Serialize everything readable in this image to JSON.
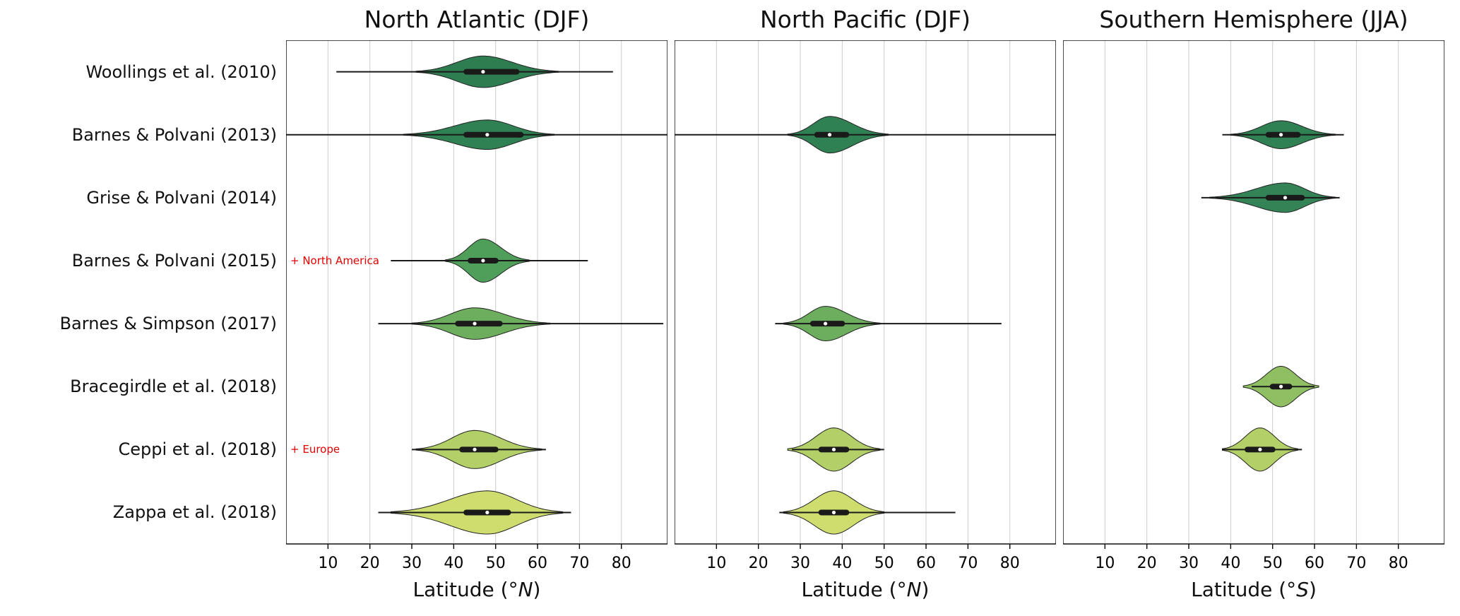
{
  "chart_data": {
    "type": "violin",
    "orientation": "horizontal",
    "studies": [
      "Woollings et al. (2010)",
      "Barnes & Polvani (2013)",
      "Grise & Polvani (2014)",
      "Barnes & Polvani (2015)",
      "Barnes & Simpson (2017)",
      "Bracegirdle et al. (2018)",
      "Ceppi et al. (2018)",
      "Zappa et al. (2018)"
    ],
    "row_colors": [
      "#2e7d51",
      "#2f8052",
      "#338356",
      "#4f9f5b",
      "#6cae5d",
      "#8fbf62",
      "#b3cf67",
      "#cfdd6e"
    ],
    "violin_edge_color": "#222222",
    "grid_color": "#cccccc",
    "annotation_color": "#e00000",
    "xticks": [
      10,
      20,
      30,
      40,
      50,
      60,
      70,
      80
    ],
    "xlim": [
      0,
      91
    ],
    "grid": true,
    "panels": [
      {
        "title": "North Atlantic (DJF)",
        "xlabel_pre": "Latitude (°",
        "xlabel_unit": "N",
        "xlabel_post": ")",
        "annotations": [
          {
            "row": 3,
            "text": "+ North America"
          },
          {
            "row": 6,
            "text": "+ Europe"
          }
        ],
        "violins": [
          {
            "row": 0,
            "median": 47,
            "q1": 43,
            "q3": 55,
            "wmin": 12,
            "wmax": 78,
            "vmin": 31,
            "vmax": 65,
            "amp": 0.62
          },
          {
            "row": 1,
            "median": 48,
            "q1": 43,
            "q3": 56,
            "wmin": 0,
            "wmax": 91,
            "vmin": 28,
            "vmax": 64,
            "amp": 0.58
          },
          {
            "row": 3,
            "median": 47,
            "q1": 44,
            "q3": 50,
            "wmin": 25,
            "wmax": 72,
            "vmin": 38,
            "vmax": 58,
            "amp": 0.85
          },
          {
            "row": 4,
            "median": 45,
            "q1": 41,
            "q3": 51,
            "wmin": 22,
            "wmax": 90,
            "vmin": 30,
            "vmax": 63,
            "amp": 0.62
          },
          {
            "row": 6,
            "median": 45,
            "q1": 42,
            "q3": 50,
            "wmin": 30,
            "wmax": 62,
            "vmin": 31,
            "vmax": 61,
            "amp": 0.75
          },
          {
            "row": 7,
            "median": 48,
            "q1": 43,
            "q3": 53,
            "wmin": 22,
            "wmax": 68,
            "vmin": 25,
            "vmax": 66,
            "amp": 0.85
          }
        ]
      },
      {
        "title": "North Pacific (DJF)",
        "xlabel_pre": "Latitude (°",
        "xlabel_unit": "N",
        "xlabel_post": ")",
        "annotations": [],
        "violins": [
          {
            "row": 1,
            "median": 37,
            "q1": 34,
            "q3": 41,
            "wmin": 0,
            "wmax": 91,
            "vmin": 27,
            "vmax": 51,
            "amp": 0.72
          },
          {
            "row": 4,
            "median": 36,
            "q1": 33,
            "q3": 40,
            "wmin": 24,
            "wmax": 78,
            "vmin": 26,
            "vmax": 49,
            "amp": 0.68
          },
          {
            "row": 6,
            "median": 38,
            "q1": 35,
            "q3": 41,
            "wmin": 28,
            "wmax": 50,
            "vmin": 27,
            "vmax": 49,
            "amp": 0.85
          },
          {
            "row": 7,
            "median": 38,
            "q1": 35,
            "q3": 41,
            "wmin": 25,
            "wmax": 67,
            "vmin": 26,
            "vmax": 50,
            "amp": 0.85
          }
        ]
      },
      {
        "title": "Southern Hemisphere (JJA)",
        "xlabel_pre": "Latitude (°",
        "xlabel_unit": "S",
        "xlabel_post": ")",
        "annotations": [],
        "violins": [
          {
            "row": 1,
            "median": 52,
            "q1": 49,
            "q3": 56,
            "wmin": 38,
            "wmax": 67,
            "vmin": 40,
            "vmax": 65,
            "amp": 0.55
          },
          {
            "row": 2,
            "median": 53,
            "q1": 49,
            "q3": 57,
            "wmin": 33,
            "wmax": 66,
            "vmin": 35,
            "vmax": 65,
            "amp": 0.58
          },
          {
            "row": 5,
            "median": 52,
            "q1": 50,
            "q3": 54,
            "wmin": 45,
            "wmax": 60,
            "vmin": 43,
            "vmax": 61,
            "amp": 0.8
          },
          {
            "row": 6,
            "median": 47,
            "q1": 44,
            "q3": 50,
            "wmin": 38,
            "wmax": 57,
            "vmin": 38,
            "vmax": 56,
            "amp": 0.85
          }
        ]
      }
    ]
  }
}
